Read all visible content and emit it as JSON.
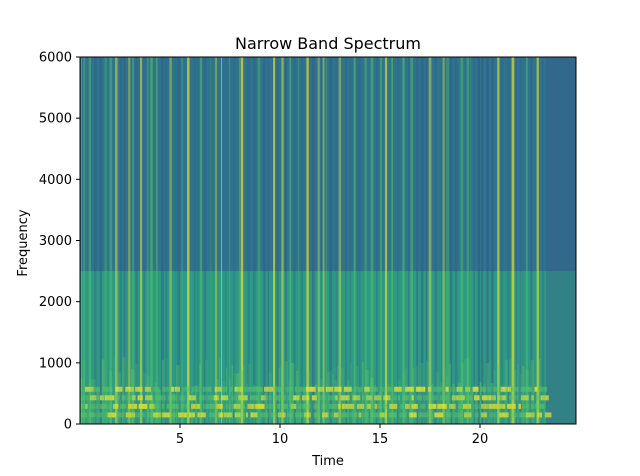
{
  "chart_data": {
    "type": "heatmap",
    "title": "Narrow Band Spectrum",
    "xlabel": "Time",
    "ylabel": "Frequency",
    "xlim": [
      0,
      24.8
    ],
    "ylim": [
      0,
      6000
    ],
    "x_ticks": [
      5,
      10,
      15,
      20
    ],
    "y_ticks": [
      0,
      1000,
      2000,
      3000,
      4000,
      5000,
      6000
    ],
    "grid": false,
    "colormap": "viridis",
    "colors": {
      "low": "#3b528b",
      "mid": "#21918c",
      "high": "#5ec962",
      "peak": "#fde725"
    },
    "signal_end_time": 23.3,
    "upper_band_edge_hz": 2500,
    "harmonic_band_hz": [
      140,
      280,
      420,
      560
    ],
    "harmonic_band_top_hz": 1100
  }
}
